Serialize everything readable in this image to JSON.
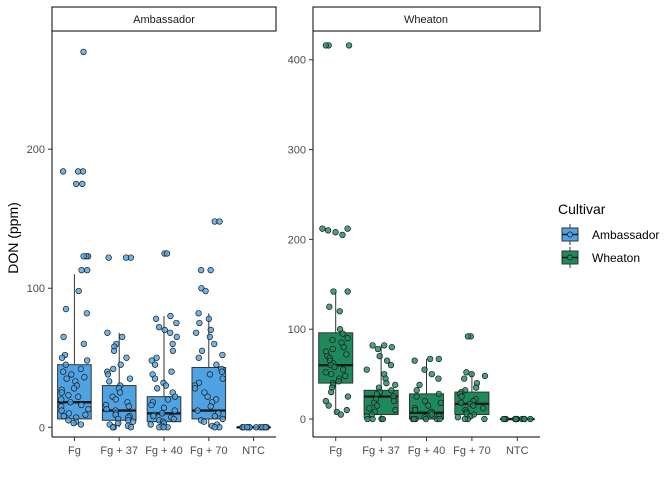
{
  "chart_data": {
    "type": "box",
    "ylabel": "DON (ppm)",
    "xlabel": "",
    "categories": [
      "Fg",
      "Fg + 37",
      "Fg + 40",
      "Fg + 70",
      "NTC"
    ],
    "legend": {
      "title": "Cultivar",
      "position": "right",
      "items": [
        {
          "label": "Ambassador",
          "color": "#4FA3E3"
        },
        {
          "label": "Wheaton",
          "color": "#1E8A5C"
        }
      ]
    },
    "grid": false,
    "panels": [
      {
        "strip": "Ambassador",
        "color": "#4FA3E3",
        "ylim": [
          -7,
          285
        ],
        "yticks": [
          0,
          100,
          200
        ],
        "boxes": [
          {
            "category": "Fg",
            "lower_whisker": 2,
            "q1": 6,
            "median": 18,
            "q3": 45,
            "upper_whisker": 110
          },
          {
            "category": "Fg + 37",
            "lower_whisker": 0,
            "q1": 5,
            "median": 12,
            "q3": 30,
            "upper_whisker": 68
          },
          {
            "category": "Fg + 40",
            "lower_whisker": 0,
            "q1": 4,
            "median": 10,
            "q3": 22,
            "upper_whisker": 80
          },
          {
            "category": "Fg + 70",
            "lower_whisker": 0,
            "q1": 6,
            "median": 12,
            "q3": 43,
            "upper_whisker": 82
          },
          {
            "category": "NTC",
            "lower_whisker": 0,
            "q1": 0,
            "median": 0,
            "q3": 0,
            "upper_whisker": 0
          }
        ],
        "points": [
          {
            "category": "Fg",
            "values": [
              270,
              184,
              184,
              184,
              175,
              175,
              123,
              123,
              123,
              113,
              113,
              98,
              85,
              82,
              65,
              60,
              52,
              50,
              48,
              45,
              42,
              40,
              38,
              36,
              35,
              33,
              30,
              28,
              27,
              25,
              23,
              22,
              20,
              18,
              16,
              15,
              13,
              12,
              10,
              9,
              8,
              7,
              5,
              4,
              3,
              2
            ]
          },
          {
            "category": "Fg + 37",
            "values": [
              122,
              122,
              122,
              68,
              65,
              60,
              58,
              55,
              50,
              45,
              42,
              40,
              38,
              35,
              33,
              30,
              28,
              25,
              22,
              20,
              18,
              16,
              15,
              13,
              12,
              10,
              9,
              8,
              7,
              6,
              5,
              4,
              3,
              2,
              1,
              0,
              0,
              0
            ]
          },
          {
            "category": "Fg + 40",
            "values": [
              125,
              125,
              80,
              78,
              75,
              72,
              70,
              68,
              65,
              60,
              55,
              50,
              48,
              45,
              40,
              38,
              35,
              32,
              30,
              28,
              25,
              22,
              20,
              18,
              16,
              14,
              12,
              10,
              9,
              8,
              7,
              6,
              5,
              4,
              3,
              2,
              1,
              0,
              0,
              0
            ]
          },
          {
            "category": "Fg + 70",
            "values": [
              148,
              148,
              113,
              113,
              100,
              98,
              82,
              78,
              75,
              70,
              68,
              65,
              60,
              55,
              52,
              50,
              45,
              42,
              40,
              38,
              35,
              32,
              30,
              28,
              25,
              22,
              20,
              18,
              15,
              12,
              10,
              8,
              6,
              5,
              4,
              2,
              1,
              0,
              0
            ]
          },
          {
            "category": "NTC",
            "values": [
              0,
              0,
              0,
              0,
              0,
              0,
              0,
              0,
              0,
              0,
              0,
              0
            ]
          }
        ]
      },
      {
        "strip": "Wheaton",
        "color": "#1E8A5C",
        "ylim": [
          -20,
          432
        ],
        "yticks": [
          0,
          100,
          200,
          300,
          400
        ],
        "boxes": [
          {
            "category": "Fg",
            "lower_whisker": 5,
            "q1": 40,
            "median": 60,
            "q3": 96,
            "upper_whisker": 142
          },
          {
            "category": "Fg + 37",
            "lower_whisker": 0,
            "q1": 5,
            "median": 25,
            "q3": 32,
            "upper_whisker": 82
          },
          {
            "category": "Fg + 40",
            "lower_whisker": 0,
            "q1": 0,
            "median": 7,
            "q3": 28,
            "upper_whisker": 67
          },
          {
            "category": "Fg + 70",
            "lower_whisker": 0,
            "q1": 5,
            "median": 17,
            "q3": 30,
            "upper_whisker": 52
          },
          {
            "category": "NTC",
            "lower_whisker": 0,
            "q1": 0,
            "median": 0,
            "q3": 0,
            "upper_whisker": 0
          }
        ],
        "points": [
          {
            "category": "Fg",
            "values": [
              416,
              416,
              416,
              212,
              212,
              210,
              208,
              205,
              142,
              142,
              125,
              120,
              100,
              95,
              90,
              88,
              85,
              80,
              78,
              75,
              72,
              70,
              68,
              65,
              62,
              60,
              58,
              55,
              52,
              50,
              48,
              45,
              42,
              40,
              38,
              35,
              30,
              25,
              20,
              15,
              10,
              8,
              5
            ]
          },
          {
            "category": "Fg + 37",
            "values": [
              82,
              82,
              80,
              78,
              70,
              65,
              60,
              55,
              50,
              45,
              40,
              38,
              35,
              32,
              30,
              28,
              25,
              22,
              20,
              18,
              15,
              12,
              10,
              8,
              5,
              3,
              0,
              0,
              0,
              0
            ]
          },
          {
            "category": "Fg + 40",
            "values": [
              67,
              67,
              65,
              55,
              50,
              45,
              38,
              32,
              28,
              25,
              20,
              18,
              15,
              12,
              10,
              8,
              7,
              5,
              3,
              2,
              0,
              0,
              0,
              0,
              0,
              0
            ]
          },
          {
            "category": "Fg + 70",
            "values": [
              92,
              92,
              52,
              50,
              48,
              45,
              40,
              35,
              32,
              30,
              28,
              25,
              22,
              20,
              18,
              17,
              15,
              12,
              10,
              8,
              6,
              5,
              3,
              2,
              0,
              0,
              0
            ]
          },
          {
            "category": "NTC",
            "values": [
              0,
              0,
              0,
              0,
              0,
              0,
              0,
              0,
              0,
              0,
              0,
              0
            ]
          }
        ]
      }
    ]
  }
}
